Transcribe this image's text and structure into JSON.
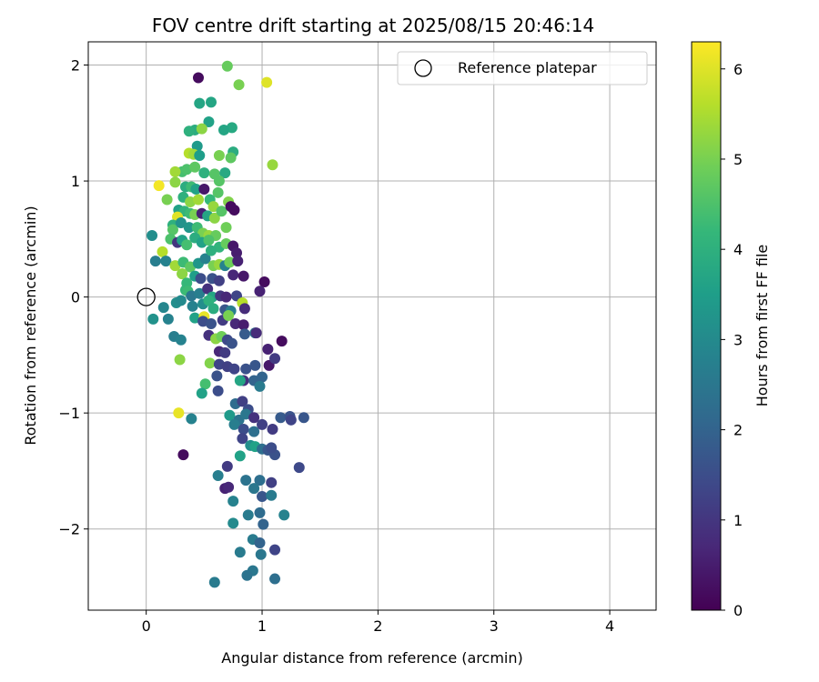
{
  "chart_data": {
    "type": "scatter",
    "title": "FOV centre drift starting at 2025/08/15 20:46:14",
    "xlabel": "Angular distance from reference (arcmin)",
    "ylabel": "Rotation from reference (arcmin)",
    "xlim": [
      -0.5,
      4.4
    ],
    "ylim": [
      -2.7,
      2.2
    ],
    "xticks": [
      0,
      1,
      2,
      3,
      4
    ],
    "yticks": [
      -2,
      -1,
      0,
      1,
      2
    ],
    "xtick_labels": [
      "0",
      "1",
      "2",
      "3",
      "4"
    ],
    "ytick_labels": [
      "−2",
      "−1",
      "0",
      "1",
      "2"
    ],
    "grid": true,
    "legend": {
      "position": "top-right",
      "entries": [
        {
          "label": "Reference platepar",
          "marker": "open-circle"
        }
      ]
    },
    "reference_point": {
      "x": 0,
      "y": 0
    },
    "colorbar": {
      "label": "Hours from first FF file",
      "range": [
        0,
        6.3
      ],
      "ticks": [
        0,
        1,
        2,
        3,
        4,
        5,
        6
      ],
      "colormap": "viridis"
    },
    "points": [
      {
        "x": 0.45,
        "y": 1.89,
        "h": 0.2
      },
      {
        "x": 0.7,
        "y": 1.99,
        "h": 4.8
      },
      {
        "x": 1.04,
        "y": 1.85,
        "h": 6.0
      },
      {
        "x": 0.8,
        "y": 1.83,
        "h": 5.0
      },
      {
        "x": 0.46,
        "y": 1.67,
        "h": 3.7
      },
      {
        "x": 0.56,
        "y": 1.68,
        "h": 3.7
      },
      {
        "x": 0.54,
        "y": 1.51,
        "h": 3.6
      },
      {
        "x": 0.74,
        "y": 1.46,
        "h": 3.8
      },
      {
        "x": 0.42,
        "y": 1.44,
        "h": 3.9
      },
      {
        "x": 0.67,
        "y": 1.44,
        "h": 3.7
      },
      {
        "x": 0.37,
        "y": 1.43,
        "h": 4.0
      },
      {
        "x": 0.48,
        "y": 1.45,
        "h": 5.2
      },
      {
        "x": 0.44,
        "y": 1.3,
        "h": 3.4
      },
      {
        "x": 0.75,
        "y": 1.25,
        "h": 3.9
      },
      {
        "x": 1.09,
        "y": 1.14,
        "h": 5.3
      },
      {
        "x": 0.37,
        "y": 1.24,
        "h": 5.6
      },
      {
        "x": 0.41,
        "y": 1.23,
        "h": 5.4
      },
      {
        "x": 0.63,
        "y": 1.22,
        "h": 5.0
      },
      {
        "x": 0.73,
        "y": 1.2,
        "h": 4.7
      },
      {
        "x": 0.46,
        "y": 1.22,
        "h": 3.5
      },
      {
        "x": 0.31,
        "y": 1.08,
        "h": 4.4
      },
      {
        "x": 0.35,
        "y": 1.1,
        "h": 4.5
      },
      {
        "x": 0.42,
        "y": 1.12,
        "h": 4.7
      },
      {
        "x": 0.5,
        "y": 1.07,
        "h": 4.0
      },
      {
        "x": 0.59,
        "y": 1.06,
        "h": 4.6
      },
      {
        "x": 0.68,
        "y": 1.07,
        "h": 3.8
      },
      {
        "x": 0.25,
        "y": 1.08,
        "h": 5.4
      },
      {
        "x": 0.11,
        "y": 0.96,
        "h": 6.2
      },
      {
        "x": 0.25,
        "y": 0.99,
        "h": 5.2
      },
      {
        "x": 0.34,
        "y": 0.95,
        "h": 3.9
      },
      {
        "x": 0.39,
        "y": 0.95,
        "h": 4.3
      },
      {
        "x": 0.43,
        "y": 0.93,
        "h": 3.6
      },
      {
        "x": 0.5,
        "y": 0.93,
        "h": 0.4
      },
      {
        "x": 0.63,
        "y": 1.0,
        "h": 4.6
      },
      {
        "x": 0.62,
        "y": 0.9,
        "h": 4.6
      },
      {
        "x": 0.18,
        "y": 0.84,
        "h": 5.0
      },
      {
        "x": 0.32,
        "y": 0.86,
        "h": 4.0
      },
      {
        "x": 0.38,
        "y": 0.82,
        "h": 5.2
      },
      {
        "x": 0.45,
        "y": 0.84,
        "h": 5.4
      },
      {
        "x": 0.55,
        "y": 0.84,
        "h": 4.2
      },
      {
        "x": 0.58,
        "y": 0.78,
        "h": 5.3
      },
      {
        "x": 0.71,
        "y": 0.82,
        "h": 5.1
      },
      {
        "x": 0.28,
        "y": 0.75,
        "h": 3.6
      },
      {
        "x": 0.33,
        "y": 0.74,
        "h": 4.1
      },
      {
        "x": 0.38,
        "y": 0.72,
        "h": 4.3
      },
      {
        "x": 0.42,
        "y": 0.71,
        "h": 5.0
      },
      {
        "x": 0.48,
        "y": 0.72,
        "h": 0.6
      },
      {
        "x": 0.53,
        "y": 0.7,
        "h": 3.7
      },
      {
        "x": 0.59,
        "y": 0.68,
        "h": 5.2
      },
      {
        "x": 0.65,
        "y": 0.74,
        "h": 4.6
      },
      {
        "x": 0.73,
        "y": 0.78,
        "h": 0.2
      },
      {
        "x": 0.76,
        "y": 0.75,
        "h": 0.2
      },
      {
        "x": 0.27,
        "y": 0.69,
        "h": 6.0
      },
      {
        "x": 0.23,
        "y": 0.62,
        "h": 4.0
      },
      {
        "x": 0.23,
        "y": 0.58,
        "h": 4.6
      },
      {
        "x": 0.3,
        "y": 0.64,
        "h": 3.2
      },
      {
        "x": 0.37,
        "y": 0.6,
        "h": 3.3
      },
      {
        "x": 0.44,
        "y": 0.6,
        "h": 4.3
      },
      {
        "x": 0.49,
        "y": 0.55,
        "h": 5.0
      },
      {
        "x": 0.54,
        "y": 0.53,
        "h": 5.3
      },
      {
        "x": 0.6,
        "y": 0.53,
        "h": 4.8
      },
      {
        "x": 0.69,
        "y": 0.6,
        "h": 4.9
      },
      {
        "x": 0.05,
        "y": 0.53,
        "h": 3.1
      },
      {
        "x": 0.21,
        "y": 0.5,
        "h": 4.5
      },
      {
        "x": 0.27,
        "y": 0.47,
        "h": 1.0
      },
      {
        "x": 0.31,
        "y": 0.49,
        "h": 3.6
      },
      {
        "x": 0.35,
        "y": 0.45,
        "h": 4.4
      },
      {
        "x": 0.42,
        "y": 0.51,
        "h": 3.9
      },
      {
        "x": 0.48,
        "y": 0.47,
        "h": 3.6
      },
      {
        "x": 0.54,
        "y": 0.49,
        "h": 4.5
      },
      {
        "x": 0.63,
        "y": 0.43,
        "h": 4.1
      },
      {
        "x": 0.69,
        "y": 0.46,
        "h": 4.8
      },
      {
        "x": 0.75,
        "y": 0.44,
        "h": 0.4
      },
      {
        "x": 0.78,
        "y": 0.38,
        "h": 0.5
      },
      {
        "x": 0.14,
        "y": 0.39,
        "h": 5.6
      },
      {
        "x": 0.08,
        "y": 0.31,
        "h": 2.7
      },
      {
        "x": 0.17,
        "y": 0.31,
        "h": 2.8
      },
      {
        "x": 0.25,
        "y": 0.27,
        "h": 5.4
      },
      {
        "x": 0.32,
        "y": 0.3,
        "h": 4.3
      },
      {
        "x": 0.38,
        "y": 0.26,
        "h": 4.7
      },
      {
        "x": 0.45,
        "y": 0.29,
        "h": 3.3
      },
      {
        "x": 0.51,
        "y": 0.33,
        "h": 2.8
      },
      {
        "x": 0.56,
        "y": 0.4,
        "h": 4.0
      },
      {
        "x": 0.58,
        "y": 0.27,
        "h": 5.0
      },
      {
        "x": 0.63,
        "y": 0.28,
        "h": 5.3
      },
      {
        "x": 0.68,
        "y": 0.27,
        "h": 2.8
      },
      {
        "x": 0.72,
        "y": 0.3,
        "h": 4.9
      },
      {
        "x": 0.79,
        "y": 0.31,
        "h": 0.6
      },
      {
        "x": 0.31,
        "y": 0.2,
        "h": 6.0
      },
      {
        "x": 0.31,
        "y": 0.2,
        "h": 5.2
      },
      {
        "x": 0.35,
        "y": 0.12,
        "h": 4.2
      },
      {
        "x": 0.42,
        "y": 0.18,
        "h": 3.5
      },
      {
        "x": 0.47,
        "y": 0.16,
        "h": 1.5
      },
      {
        "x": 0.57,
        "y": 0.16,
        "h": 1.6
      },
      {
        "x": 0.63,
        "y": 0.14,
        "h": 1.2
      },
      {
        "x": 0.75,
        "y": 0.19,
        "h": 0.7
      },
      {
        "x": 0.84,
        "y": 0.18,
        "h": 0.4
      },
      {
        "x": 1.02,
        "y": 0.13,
        "h": 0.2
      },
      {
        "x": 0.34,
        "y": 0.06,
        "h": 4.2
      },
      {
        "x": 0.36,
        "y": 0.05,
        "h": 4.3
      },
      {
        "x": 0.39,
        "y": 0.01,
        "h": 2.5
      },
      {
        "x": 0.46,
        "y": 0.03,
        "h": 2.7
      },
      {
        "x": 0.53,
        "y": 0.07,
        "h": 0.9
      },
      {
        "x": 0.57,
        "y": 0.0,
        "h": 3.7
      },
      {
        "x": 0.64,
        "y": 0.01,
        "h": 1.0
      },
      {
        "x": 0.69,
        "y": 0.0,
        "h": 0.7
      },
      {
        "x": 0.78,
        "y": 0.01,
        "h": 1.3
      },
      {
        "x": 0.83,
        "y": -0.05,
        "h": 5.6
      },
      {
        "x": 0.98,
        "y": 0.05,
        "h": 0.6
      },
      {
        "x": 0.26,
        "y": -0.05,
        "h": 3.1
      },
      {
        "x": 0.3,
        "y": -0.03,
        "h": 3.0
      },
      {
        "x": 0.15,
        "y": -0.09,
        "h": 2.9
      },
      {
        "x": 0.4,
        "y": -0.08,
        "h": 2.8
      },
      {
        "x": 0.49,
        "y": -0.06,
        "h": 3.1
      },
      {
        "x": 0.54,
        "y": -0.03,
        "h": 4.0
      },
      {
        "x": 0.58,
        "y": -0.1,
        "h": 3.9
      },
      {
        "x": 0.68,
        "y": -0.11,
        "h": 1.7
      },
      {
        "x": 0.73,
        "y": -0.12,
        "h": 2.7
      },
      {
        "x": 0.85,
        "y": -0.1,
        "h": 0.8
      },
      {
        "x": 0.06,
        "y": -0.19,
        "h": 3.2
      },
      {
        "x": 0.19,
        "y": -0.19,
        "h": 2.8
      },
      {
        "x": 0.42,
        "y": -0.18,
        "h": 3.6
      },
      {
        "x": 0.5,
        "y": -0.17,
        "h": 6.1
      },
      {
        "x": 0.49,
        "y": -0.21,
        "h": 1.5
      },
      {
        "x": 0.56,
        "y": -0.23,
        "h": 1.6
      },
      {
        "x": 0.66,
        "y": -0.2,
        "h": 1.1
      },
      {
        "x": 0.71,
        "y": -0.16,
        "h": 5.0
      },
      {
        "x": 0.77,
        "y": -0.23,
        "h": 0.7
      },
      {
        "x": 0.84,
        "y": -0.24,
        "h": 0.5
      },
      {
        "x": 0.24,
        "y": -0.34,
        "h": 2.7
      },
      {
        "x": 0.3,
        "y": -0.37,
        "h": 2.8
      },
      {
        "x": 0.54,
        "y": -0.33,
        "h": 0.9
      },
      {
        "x": 0.6,
        "y": -0.36,
        "h": 5.2
      },
      {
        "x": 0.65,
        "y": -0.34,
        "h": 4.9
      },
      {
        "x": 0.7,
        "y": -0.37,
        "h": 1.4
      },
      {
        "x": 0.74,
        "y": -0.4,
        "h": 1.6
      },
      {
        "x": 0.85,
        "y": -0.32,
        "h": 1.8
      },
      {
        "x": 0.94,
        "y": -0.31,
        "h": 2.5
      },
      {
        "x": 0.95,
        "y": -0.31,
        "h": 0.8
      },
      {
        "x": 1.17,
        "y": -0.38,
        "h": 0.2
      },
      {
        "x": 0.63,
        "y": -0.47,
        "h": 0.7
      },
      {
        "x": 0.68,
        "y": -0.48,
        "h": 1.1
      },
      {
        "x": 1.05,
        "y": -0.45,
        "h": 0.6
      },
      {
        "x": 0.29,
        "y": -0.54,
        "h": 5.2
      },
      {
        "x": 0.55,
        "y": -0.57,
        "h": 5.1
      },
      {
        "x": 0.63,
        "y": -0.58,
        "h": 1.3
      },
      {
        "x": 0.7,
        "y": -0.6,
        "h": 1.2
      },
      {
        "x": 0.76,
        "y": -0.62,
        "h": 1.3
      },
      {
        "x": 0.86,
        "y": -0.62,
        "h": 1.6
      },
      {
        "x": 0.94,
        "y": -0.59,
        "h": 1.7
      },
      {
        "x": 1.06,
        "y": -0.59,
        "h": 0.4
      },
      {
        "x": 1.11,
        "y": -0.53,
        "h": 1.1
      },
      {
        "x": 0.61,
        "y": -0.68,
        "h": 1.6
      },
      {
        "x": 0.84,
        "y": -0.72,
        "h": 0.9
      },
      {
        "x": 0.81,
        "y": -0.72,
        "h": 3.7
      },
      {
        "x": 0.93,
        "y": -0.72,
        "h": 2.0
      },
      {
        "x": 1.0,
        "y": -0.69,
        "h": 2.0
      },
      {
        "x": 0.51,
        "y": -0.75,
        "h": 4.4
      },
      {
        "x": 0.48,
        "y": -0.83,
        "h": 3.6
      },
      {
        "x": 0.62,
        "y": -0.81,
        "h": 1.5
      },
      {
        "x": 0.98,
        "y": -0.77,
        "h": 2.6
      },
      {
        "x": 0.77,
        "y": -0.92,
        "h": 2.2
      },
      {
        "x": 0.83,
        "y": -0.9,
        "h": 1.2
      },
      {
        "x": 0.88,
        "y": -0.97,
        "h": 1.5
      },
      {
        "x": 0.28,
        "y": -1.0,
        "h": 6.1
      },
      {
        "x": 0.39,
        "y": -1.05,
        "h": 2.8
      },
      {
        "x": 0.72,
        "y": -1.02,
        "h": 3.4
      },
      {
        "x": 0.8,
        "y": -1.06,
        "h": 2.4
      },
      {
        "x": 0.86,
        "y": -1.01,
        "h": 2.5
      },
      {
        "x": 0.93,
        "y": -1.04,
        "h": 0.9
      },
      {
        "x": 1.16,
        "y": -1.04,
        "h": 1.8
      },
      {
        "x": 1.24,
        "y": -1.03,
        "h": 1.6
      },
      {
        "x": 1.25,
        "y": -1.06,
        "h": 1.3
      },
      {
        "x": 1.36,
        "y": -1.04,
        "h": 1.7
      },
      {
        "x": 0.76,
        "y": -1.1,
        "h": 2.7
      },
      {
        "x": 0.84,
        "y": -1.14,
        "h": 1.5
      },
      {
        "x": 0.93,
        "y": -1.16,
        "h": 2.3
      },
      {
        "x": 1.0,
        "y": -1.1,
        "h": 1.2
      },
      {
        "x": 1.09,
        "y": -1.14,
        "h": 1.1
      },
      {
        "x": 0.83,
        "y": -1.22,
        "h": 1.3
      },
      {
        "x": 0.9,
        "y": -1.28,
        "h": 3.1
      },
      {
        "x": 0.94,
        "y": -1.29,
        "h": 3.6
      },
      {
        "x": 1.0,
        "y": -1.31,
        "h": 2.3
      },
      {
        "x": 1.05,
        "y": -1.32,
        "h": 1.7
      },
      {
        "x": 1.11,
        "y": -1.36,
        "h": 1.6
      },
      {
        "x": 1.08,
        "y": -1.3,
        "h": 1.5
      },
      {
        "x": 0.32,
        "y": -1.36,
        "h": 0.2
      },
      {
        "x": 0.81,
        "y": -1.37,
        "h": 3.6
      },
      {
        "x": 0.7,
        "y": -1.46,
        "h": 1.1
      },
      {
        "x": 1.32,
        "y": -1.47,
        "h": 1.4
      },
      {
        "x": 0.62,
        "y": -1.54,
        "h": 2.7
      },
      {
        "x": 0.86,
        "y": -1.58,
        "h": 2.4
      },
      {
        "x": 0.98,
        "y": -1.58,
        "h": 2.3
      },
      {
        "x": 1.08,
        "y": -1.6,
        "h": 1.2
      },
      {
        "x": 0.68,
        "y": -1.65,
        "h": 0.6
      },
      {
        "x": 0.71,
        "y": -1.64,
        "h": 0.7
      },
      {
        "x": 0.93,
        "y": -1.65,
        "h": 2.5
      },
      {
        "x": 1.0,
        "y": -1.72,
        "h": 1.7
      },
      {
        "x": 1.08,
        "y": -1.71,
        "h": 2.6
      },
      {
        "x": 0.75,
        "y": -1.76,
        "h": 2.8
      },
      {
        "x": 0.98,
        "y": -1.86,
        "h": 2.2
      },
      {
        "x": 1.19,
        "y": -1.88,
        "h": 2.8
      },
      {
        "x": 0.88,
        "y": -1.88,
        "h": 2.6
      },
      {
        "x": 1.01,
        "y": -1.96,
        "h": 2.0
      },
      {
        "x": 0.75,
        "y": -1.95,
        "h": 3.0
      },
      {
        "x": 0.92,
        "y": -2.09,
        "h": 2.6
      },
      {
        "x": 0.98,
        "y": -2.12,
        "h": 2.0
      },
      {
        "x": 0.81,
        "y": -2.2,
        "h": 2.6
      },
      {
        "x": 0.99,
        "y": -2.22,
        "h": 2.5
      },
      {
        "x": 1.11,
        "y": -2.18,
        "h": 1.3
      },
      {
        "x": 0.92,
        "y": -2.36,
        "h": 2.5
      },
      {
        "x": 0.87,
        "y": -2.4,
        "h": 2.4
      },
      {
        "x": 1.11,
        "y": -2.43,
        "h": 2.3
      },
      {
        "x": 0.59,
        "y": -2.46,
        "h": 2.6
      }
    ]
  }
}
